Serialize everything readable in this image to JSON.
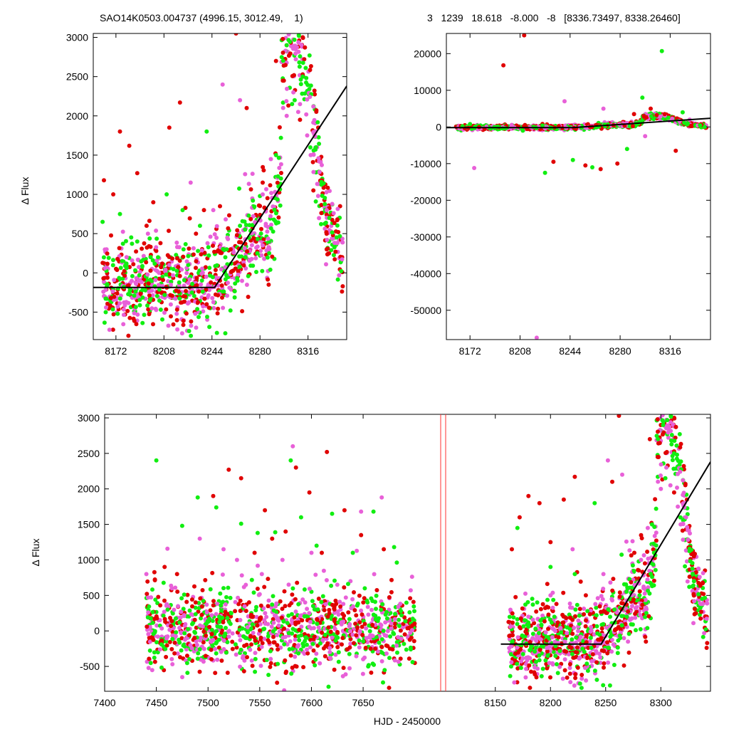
{
  "header": {
    "left": "SAO14K0503.004737 (4996.15, 3012.49,    1)",
    "right": "3   1239   18.618   -8.000   -8   [8336.73497, 8338.26460]"
  },
  "colors": {
    "series_a": "#e00000",
    "series_b": "#11ee11",
    "series_c": "#e860d8",
    "fit": "#000000",
    "gap_marker": "#ff3030"
  },
  "chart_data": [
    {
      "id": "top-left",
      "type": "scatter",
      "title": "",
      "xlabel": "",
      "ylabel": "Δ Flux",
      "xlim": [
        8155,
        8345
      ],
      "ylim": [
        -850,
        3050
      ],
      "xticks": [
        8172,
        8208,
        8244,
        8280,
        8316
      ],
      "yticks": [
        -500,
        0,
        500,
        1000,
        1500,
        2000,
        2500,
        3000
      ],
      "grid": false,
      "legend": "none",
      "fit_line": {
        "x": [
          8155,
          8246,
          8345
        ],
        "y": [
          -185,
          -185,
          2380
        ]
      },
      "series": [
        {
          "color": "#e00000",
          "x": [
            8163,
            8170,
            8175,
            8182,
            8188,
            8195,
            8200,
            8212,
            8220,
            8232,
            8238,
            8250,
            8258,
            8262,
            8270,
            8282,
            8292,
            8300,
            8310,
            8320,
            8330,
            8250,
            8240
          ],
          "y": [
            1180,
            1000,
            1800,
            1620,
            1270,
            600,
            900,
            1850,
            2170,
            500,
            800,
            850,
            300,
            3050,
            2100,
            1150,
            2700,
            2900,
            1950,
            1050,
            300,
            -100,
            -400
          ]
        },
        {
          "color": "#11ee11",
          "x": [
            8162,
            8175,
            8188,
            8198,
            8210,
            8222,
            8235,
            8240,
            8255,
            8265,
            8278,
            8292,
            8300,
            8306,
            8312,
            8322,
            8332
          ],
          "y": [
            650,
            750,
            400,
            200,
            1000,
            800,
            600,
            1800,
            300,
            600,
            250,
            1500,
            2900,
            2200,
            2500,
            1600,
            700
          ]
        },
        {
          "color": "#e860d8",
          "x": [
            8165,
            8180,
            8196,
            8212,
            8228,
            8245,
            8252,
            8265,
            8282,
            8300,
            8305,
            8310,
            8318,
            8330
          ],
          "y": [
            300,
            200,
            500,
            100,
            1150,
            800,
            2400,
            2200,
            350,
            2000,
            2300,
            2150,
            1500,
            800
          ]
        }
      ]
    },
    {
      "id": "top-right",
      "type": "scatter",
      "title": "",
      "xlabel": "",
      "ylabel": "",
      "xlim": [
        8155,
        8345
      ],
      "ylim": [
        -58000,
        25500
      ],
      "xticks": [
        8172,
        8208,
        8244,
        8280,
        8316
      ],
      "yticks": [
        -50000,
        -40000,
        -30000,
        -20000,
        -10000,
        0,
        10000,
        20000
      ],
      "grid": false,
      "legend": "none",
      "fit_line": {
        "x": [
          8155,
          8246,
          8345
        ],
        "y": [
          -185,
          -185,
          2380
        ]
      },
      "series": [
        {
          "color": "#e00000",
          "x": [
            8196,
            8211,
            8232,
            8255,
            8266,
            8278,
            8290,
            8302,
            8312,
            8320
          ],
          "y": [
            16800,
            25000,
            -9500,
            -10500,
            -11500,
            -10000,
            3500,
            5000,
            3500,
            -6500
          ]
        },
        {
          "color": "#11ee11",
          "x": [
            8172,
            8210,
            8226,
            8246,
            8260,
            8285,
            8296,
            8310,
            8325
          ],
          "y": [
            800,
            -1000,
            -12500,
            -9000,
            -11000,
            -6000,
            8000,
            20700,
            4000
          ]
        },
        {
          "color": "#e860d8",
          "x": [
            8175,
            8220,
            8240,
            8268,
            8298,
            8330
          ],
          "y": [
            -11200,
            -57500,
            7000,
            5000,
            -2500,
            2000
          ]
        }
      ]
    },
    {
      "id": "bottom",
      "type": "scatter",
      "title": "",
      "xlabel": "HJD - 2450000",
      "ylabel": "Δ Flux",
      "ylim": [
        -850,
        3050
      ],
      "yticks": [
        -500,
        0,
        500,
        1000,
        1500,
        2000,
        2500,
        3000
      ],
      "grid": false,
      "legend": "none",
      "segments": [
        {
          "xlim": [
            7400,
            7725
          ],
          "xticks": [
            7400,
            7450,
            7500,
            7550,
            7600,
            7650
          ]
        },
        {
          "xlim": [
            8105,
            8345
          ],
          "xticks": [
            8150,
            8200,
            8250,
            8300
          ]
        }
      ],
      "fit_line": {
        "x": [
          8155,
          8246,
          8345
        ],
        "y": [
          -185,
          -185,
          2380
        ]
      },
      "series": [
        {
          "color": "#e00000",
          "x": [
            7458,
            7470,
            7488,
            7505,
            7520,
            7532,
            7545,
            7555,
            7562,
            7575,
            7585,
            7598,
            7610,
            7615,
            7632,
            7648,
            7670,
            8165,
            8172,
            8180,
            8190,
            8200,
            8212,
            8222,
            8232,
            8246,
            8256,
            8262,
            8276,
            8290,
            8300,
            8312,
            8330
          ],
          "y": [
            900,
            800,
            400,
            1900,
            2270,
            2150,
            1100,
            1700,
            1300,
            1400,
            2300,
            1950,
            1100,
            2520,
            1700,
            1350,
            1150,
            1150,
            1600,
            1900,
            1800,
            1250,
            1850,
            2170,
            500,
            -100,
            2100,
            3030,
            1100,
            2700,
            2900,
            1950,
            1050
          ]
        },
        {
          "color": "#11ee11",
          "x": [
            7450,
            7475,
            7490,
            7508,
            7532,
            7548,
            7565,
            7580,
            7590,
            7605,
            7620,
            7640,
            7660,
            7680,
            8170,
            8188,
            8200,
            8222,
            8240,
            8258,
            8270,
            8292,
            8302,
            8312,
            8330
          ],
          "y": [
            2400,
            1480,
            1880,
            1740,
            1510,
            1380,
            1390,
            2400,
            1600,
            1200,
            1650,
            1100,
            1680,
            1180,
            1450,
            400,
            900,
            800,
            1800,
            300,
            600,
            1500,
            2900,
            2500,
            700
          ]
        },
        {
          "color": "#e860d8",
          "x": [
            7465,
            7492,
            7515,
            7528,
            7552,
            7572,
            7582,
            7600,
            7625,
            7648,
            7668,
            8180,
            8200,
            8220,
            8248,
            8252,
            8265,
            8300,
            8305,
            8318
          ],
          "y": [
            600,
            1300,
            1150,
            1000,
            800,
            1000,
            2600,
            1100,
            650,
            1680,
            1880,
            200,
            500,
            1150,
            800,
            2400,
            2200,
            2000,
            2300,
            1500
          ]
        }
      ]
    }
  ]
}
